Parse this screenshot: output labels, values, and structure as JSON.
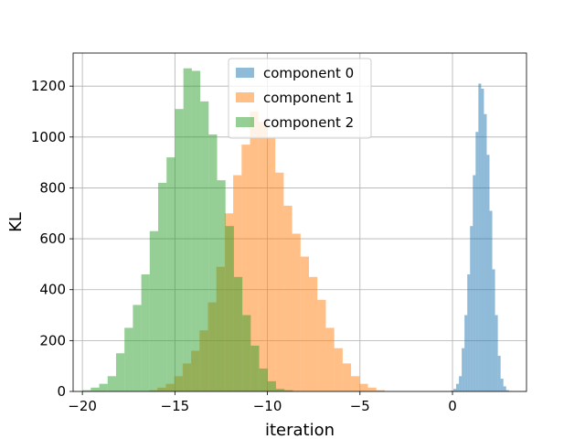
{
  "chart_data": {
    "type": "bar",
    "title": "",
    "xlabel": "iteration",
    "ylabel": "KL",
    "xlim": [
      -20.5,
      4.0
    ],
    "ylim": [
      0,
      1330
    ],
    "xticks": [
      -20,
      -15,
      -10,
      -5,
      0
    ],
    "xtick_labels": [
      "−20",
      "−15",
      "−10",
      "−5",
      "0"
    ],
    "yticks": [
      0,
      200,
      400,
      600,
      800,
      1000,
      1200
    ],
    "ytick_labels": [
      "0",
      "200",
      "400",
      "600",
      "800",
      "1000",
      "1200"
    ],
    "grid": true,
    "legend_position": "upper-center",
    "alpha": 0.5,
    "series": [
      {
        "name": "component 0",
        "color": "#1f77b4",
        "bin_start": -0.1,
        "bin_width": 0.15,
        "values": [
          3,
          10,
          30,
          60,
          170,
          300,
          460,
          650,
          850,
          1020,
          1210,
          1190,
          1090,
          930,
          710,
          480,
          300,
          140,
          50,
          20,
          5
        ]
      },
      {
        "name": "component 1",
        "color": "#ff7f0e",
        "bin_start": -16.4,
        "bin_width": 0.455,
        "values": [
          5,
          15,
          30,
          60,
          110,
          160,
          240,
          350,
          490,
          700,
          850,
          970,
          1100,
          1060,
          1000,
          860,
          730,
          620,
          530,
          450,
          360,
          250,
          170,
          110,
          60,
          30,
          15,
          5
        ]
      },
      {
        "name": "component 2",
        "color": "#2ca02c",
        "bin_start": -20.0,
        "bin_width": 0.455,
        "values": [
          5,
          15,
          30,
          60,
          150,
          250,
          340,
          460,
          630,
          820,
          920,
          1110,
          1270,
          1260,
          1140,
          1010,
          830,
          650,
          450,
          300,
          180,
          90,
          40,
          10,
          5
        ]
      }
    ]
  }
}
